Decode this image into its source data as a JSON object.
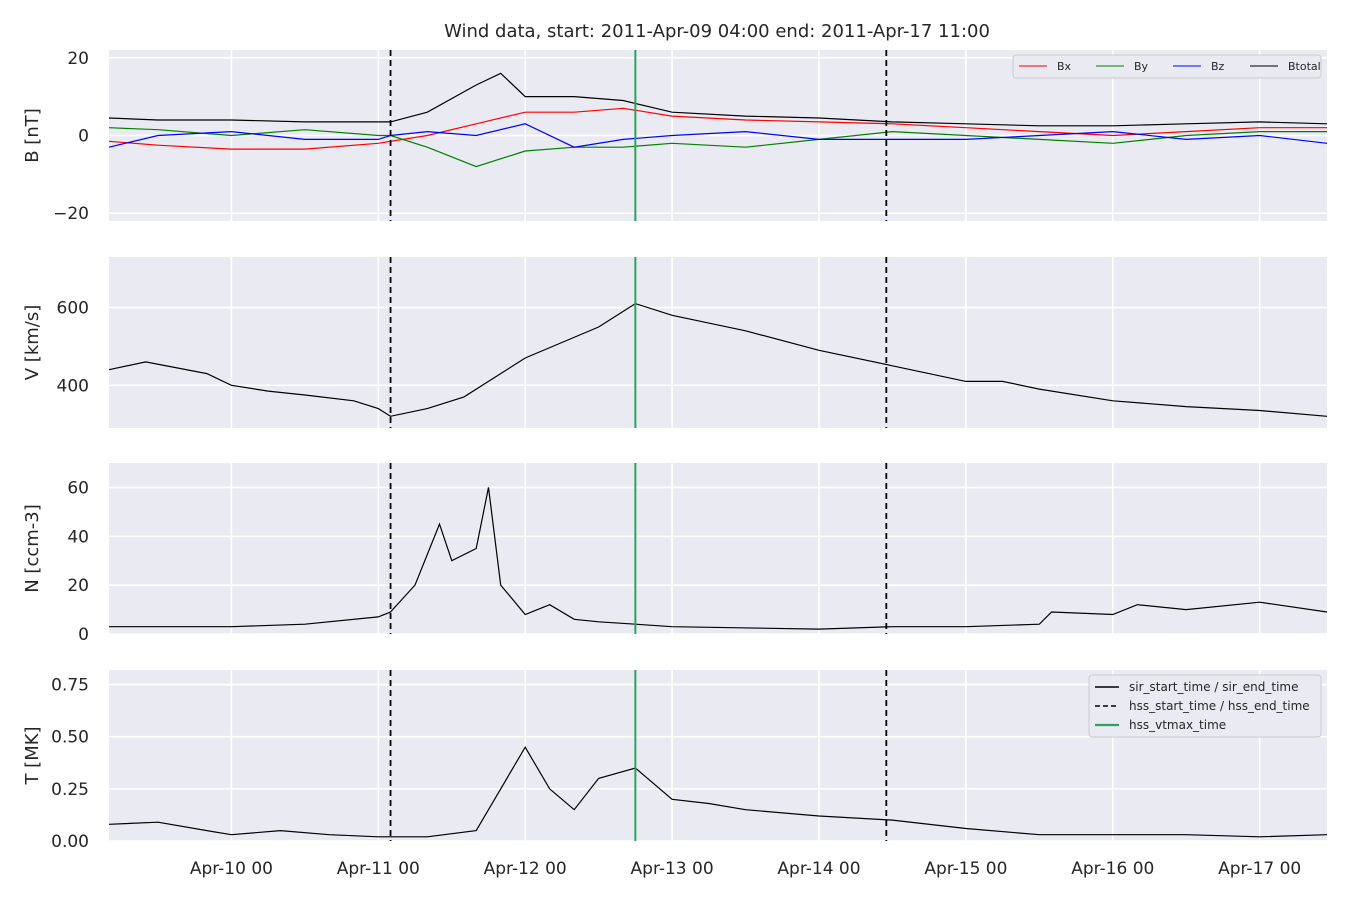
{
  "chart_data": {
    "type": "line",
    "title": "Wind data, start: 2011-Apr-09 04:00  end: 2011-Apr-17 11:00",
    "x_range": [
      "2011-04-09 04:00",
      "2011-04-17 11:00"
    ],
    "x_ticks": [
      {
        "t": "2011-04-10 00:00",
        "label": "Apr-10 00"
      },
      {
        "t": "2011-04-11 00:00",
        "label": "Apr-11 00"
      },
      {
        "t": "2011-04-12 00:00",
        "label": "Apr-12 00"
      },
      {
        "t": "2011-04-13 00:00",
        "label": "Apr-13 00"
      },
      {
        "t": "2011-04-14 00:00",
        "label": "Apr-14 00"
      },
      {
        "t": "2011-04-15 00:00",
        "label": "Apr-15 00"
      },
      {
        "t": "2011-04-16 00:00",
        "label": "Apr-16 00"
      },
      {
        "t": "2011-04-17 00:00",
        "label": "Apr-17 00"
      }
    ],
    "grid": true,
    "event_markers": [
      {
        "t": "2011-04-11 02:00",
        "style": "dashed",
        "color": "#000000",
        "series": "hss_start_time / hss_end_time"
      },
      {
        "t": "2011-04-12 18:00",
        "style": "solid",
        "color": "#2ca25f",
        "series": "hss_vtmax_time"
      },
      {
        "t": "2011-04-14 11:00",
        "style": "dashed",
        "color": "#000000",
        "series": "hss_start_time / hss_end_time"
      }
    ],
    "panels": [
      {
        "id": "B",
        "ylabel": "B [nT]",
        "ylim": [
          -22,
          22
        ],
        "yticks": [
          {
            "v": 20,
            "label": "20"
          },
          {
            "v": 0,
            "label": "0"
          },
          {
            "v": -20,
            "label": "−20"
          }
        ],
        "legend": {
          "position": "top-right",
          "layout": "row"
        },
        "series": [
          {
            "name": "Bx",
            "color": "#ff0000",
            "values": [
              [
                "2011-04-09 04:00",
                -1.5
              ],
              [
                "2011-04-09 12:00",
                -2.5
              ],
              [
                "2011-04-10 00:00",
                -3.5
              ],
              [
                "2011-04-10 12:00",
                -3.5
              ],
              [
                "2011-04-11 00:00",
                -2
              ],
              [
                "2011-04-11 02:00",
                -1.5
              ],
              [
                "2011-04-11 08:00",
                0
              ],
              [
                "2011-04-11 16:00",
                3
              ],
              [
                "2011-04-12 00:00",
                6
              ],
              [
                "2011-04-12 08:00",
                6
              ],
              [
                "2011-04-12 16:00",
                7
              ],
              [
                "2011-04-13 00:00",
                5
              ],
              [
                "2011-04-13 12:00",
                4
              ],
              [
                "2011-04-14 00:00",
                3.5
              ],
              [
                "2011-04-14 12:00",
                3
              ],
              [
                "2011-04-15 00:00",
                2
              ],
              [
                "2011-04-15 12:00",
                1
              ],
              [
                "2011-04-16 00:00",
                0
              ],
              [
                "2011-04-16 12:00",
                1
              ],
              [
                "2011-04-17 00:00",
                2
              ],
              [
                "2011-04-17 11:00",
                2
              ]
            ]
          },
          {
            "name": "By",
            "color": "#008000",
            "values": [
              [
                "2011-04-09 04:00",
                2
              ],
              [
                "2011-04-09 12:00",
                1.5
              ],
              [
                "2011-04-10 00:00",
                0
              ],
              [
                "2011-04-10 12:00",
                1.5
              ],
              [
                "2011-04-11 00:00",
                0
              ],
              [
                "2011-04-11 02:00",
                0
              ],
              [
                "2011-04-11 08:00",
                -3
              ],
              [
                "2011-04-11 16:00",
                -8
              ],
              [
                "2011-04-12 00:00",
                -4
              ],
              [
                "2011-04-12 08:00",
                -3
              ],
              [
                "2011-04-12 16:00",
                -3
              ],
              [
                "2011-04-13 00:00",
                -2
              ],
              [
                "2011-04-13 12:00",
                -3
              ],
              [
                "2011-04-14 00:00",
                -1
              ],
              [
                "2011-04-14 12:00",
                1
              ],
              [
                "2011-04-15 00:00",
                0
              ],
              [
                "2011-04-15 12:00",
                -1
              ],
              [
                "2011-04-16 00:00",
                -2
              ],
              [
                "2011-04-16 12:00",
                0
              ],
              [
                "2011-04-17 00:00",
                1
              ],
              [
                "2011-04-17 11:00",
                1
              ]
            ]
          },
          {
            "name": "Bz",
            "color": "#0000ff",
            "values": [
              [
                "2011-04-09 04:00",
                -3
              ],
              [
                "2011-04-09 12:00",
                0
              ],
              [
                "2011-04-10 00:00",
                1
              ],
              [
                "2011-04-10 12:00",
                -1
              ],
              [
                "2011-04-11 00:00",
                -1
              ],
              [
                "2011-04-11 02:00",
                0
              ],
              [
                "2011-04-11 08:00",
                1
              ],
              [
                "2011-04-11 16:00",
                0
              ],
              [
                "2011-04-12 00:00",
                3
              ],
              [
                "2011-04-12 08:00",
                -3
              ],
              [
                "2011-04-12 16:00",
                -1
              ],
              [
                "2011-04-13 00:00",
                0
              ],
              [
                "2011-04-13 12:00",
                1
              ],
              [
                "2011-04-14 00:00",
                -1
              ],
              [
                "2011-04-14 12:00",
                -1
              ],
              [
                "2011-04-15 00:00",
                -1
              ],
              [
                "2011-04-15 12:00",
                0
              ],
              [
                "2011-04-16 00:00",
                1
              ],
              [
                "2011-04-16 12:00",
                -1
              ],
              [
                "2011-04-17 00:00",
                0
              ],
              [
                "2011-04-17 11:00",
                -2
              ]
            ]
          },
          {
            "name": "Btotal",
            "color": "#000000",
            "values": [
              [
                "2011-04-09 04:00",
                4.5
              ],
              [
                "2011-04-09 12:00",
                4
              ],
              [
                "2011-04-10 00:00",
                4
              ],
              [
                "2011-04-10 12:00",
                3.5
              ],
              [
                "2011-04-11 00:00",
                3.5
              ],
              [
                "2011-04-11 02:00",
                3.5
              ],
              [
                "2011-04-11 08:00",
                6
              ],
              [
                "2011-04-11 16:00",
                13
              ],
              [
                "2011-04-11 20:00",
                16
              ],
              [
                "2011-04-12 00:00",
                10
              ],
              [
                "2011-04-12 08:00",
                10
              ],
              [
                "2011-04-12 16:00",
                9
              ],
              [
                "2011-04-13 00:00",
                6
              ],
              [
                "2011-04-13 12:00",
                5
              ],
              [
                "2011-04-14 00:00",
                4.5
              ],
              [
                "2011-04-14 12:00",
                3.5
              ],
              [
                "2011-04-15 00:00",
                3
              ],
              [
                "2011-04-15 12:00",
                2.5
              ],
              [
                "2011-04-16 00:00",
                2.5
              ],
              [
                "2011-04-16 12:00",
                3
              ],
              [
                "2011-04-17 00:00",
                3.5
              ],
              [
                "2011-04-17 11:00",
                3
              ]
            ]
          }
        ]
      },
      {
        "id": "V",
        "ylabel": "V [km/s]",
        "ylim": [
          290,
          730
        ],
        "yticks": [
          {
            "v": 600,
            "label": "600"
          },
          {
            "v": 400,
            "label": "400"
          }
        ],
        "series": [
          {
            "name": "",
            "color": "#000000",
            "values": [
              [
                "2011-04-09 04:00",
                440
              ],
              [
                "2011-04-09 10:00",
                460
              ],
              [
                "2011-04-09 20:00",
                430
              ],
              [
                "2011-04-10 00:00",
                400
              ],
              [
                "2011-04-10 06:00",
                385
              ],
              [
                "2011-04-10 12:00",
                375
              ],
              [
                "2011-04-10 20:00",
                360
              ],
              [
                "2011-04-11 00:00",
                340
              ],
              [
                "2011-04-11 02:00",
                320
              ],
              [
                "2011-04-11 08:00",
                340
              ],
              [
                "2011-04-11 14:00",
                370
              ],
              [
                "2011-04-11 20:00",
                430
              ],
              [
                "2011-04-12 00:00",
                470
              ],
              [
                "2011-04-12 06:00",
                510
              ],
              [
                "2011-04-12 12:00",
                550
              ],
              [
                "2011-04-12 18:00",
                610
              ],
              [
                "2011-04-13 00:00",
                580
              ],
              [
                "2011-04-13 06:00",
                560
              ],
              [
                "2011-04-13 12:00",
                540
              ],
              [
                "2011-04-14 00:00",
                490
              ],
              [
                "2011-04-14 12:00",
                450
              ],
              [
                "2011-04-15 00:00",
                410
              ],
              [
                "2011-04-15 06:00",
                410
              ],
              [
                "2011-04-15 12:00",
                390
              ],
              [
                "2011-04-16 00:00",
                360
              ],
              [
                "2011-04-16 12:00",
                345
              ],
              [
                "2011-04-17 00:00",
                335
              ],
              [
                "2011-04-17 11:00",
                320
              ]
            ]
          }
        ]
      },
      {
        "id": "N",
        "ylabel": "N [ccm-3]",
        "ylim": [
          0,
          70
        ],
        "yticks": [
          {
            "v": 60,
            "label": "60"
          },
          {
            "v": 40,
            "label": "40"
          },
          {
            "v": 20,
            "label": "20"
          },
          {
            "v": 0,
            "label": "0"
          }
        ],
        "series": [
          {
            "name": "",
            "color": "#000000",
            "values": [
              [
                "2011-04-09 04:00",
                3
              ],
              [
                "2011-04-09 12:00",
                3
              ],
              [
                "2011-04-10 00:00",
                3
              ],
              [
                "2011-04-10 12:00",
                4
              ],
              [
                "2011-04-11 00:00",
                7
              ],
              [
                "2011-04-11 02:00",
                9
              ],
              [
                "2011-04-11 06:00",
                20
              ],
              [
                "2011-04-11 10:00",
                45
              ],
              [
                "2011-04-11 12:00",
                30
              ],
              [
                "2011-04-11 16:00",
                35
              ],
              [
                "2011-04-11 18:00",
                60
              ],
              [
                "2011-04-11 20:00",
                20
              ],
              [
                "2011-04-12 00:00",
                8
              ],
              [
                "2011-04-12 04:00",
                12
              ],
              [
                "2011-04-12 08:00",
                6
              ],
              [
                "2011-04-12 12:00",
                5
              ],
              [
                "2011-04-12 18:00",
                4
              ],
              [
                "2011-04-13 00:00",
                3
              ],
              [
                "2011-04-14 00:00",
                2
              ],
              [
                "2011-04-14 12:00",
                3
              ],
              [
                "2011-04-15 00:00",
                3
              ],
              [
                "2011-04-15 12:00",
                4
              ],
              [
                "2011-04-15 14:00",
                9
              ],
              [
                "2011-04-16 00:00",
                8
              ],
              [
                "2011-04-16 04:00",
                12
              ],
              [
                "2011-04-16 12:00",
                10
              ],
              [
                "2011-04-17 00:00",
                13
              ],
              [
                "2011-04-17 11:00",
                9
              ]
            ]
          }
        ]
      },
      {
        "id": "T",
        "ylabel": "T [MK]",
        "ylim": [
          0,
          0.82
        ],
        "yticks": [
          {
            "v": 0.75,
            "label": "0.75"
          },
          {
            "v": 0.5,
            "label": "0.50"
          },
          {
            "v": 0.25,
            "label": "0.25"
          },
          {
            "v": 0,
            "label": "0.00"
          }
        ],
        "legend": {
          "position": "top-right",
          "layout": "column"
        },
        "legend_entries": [
          {
            "label": "sir_start_time / sir_end_time",
            "style": "solid",
            "color": "#000000"
          },
          {
            "label": "hss_start_time / hss_end_time",
            "style": "dashed",
            "color": "#000000"
          },
          {
            "label": "hss_vtmax_time",
            "style": "solid",
            "color": "#2ca25f"
          }
        ],
        "series": [
          {
            "name": "",
            "color": "#000000",
            "values": [
              [
                "2011-04-09 04:00",
                0.08
              ],
              [
                "2011-04-09 12:00",
                0.09
              ],
              [
                "2011-04-09 20:00",
                0.05
              ],
              [
                "2011-04-10 00:00",
                0.03
              ],
              [
                "2011-04-10 08:00",
                0.05
              ],
              [
                "2011-04-10 16:00",
                0.03
              ],
              [
                "2011-04-11 00:00",
                0.02
              ],
              [
                "2011-04-11 08:00",
                0.02
              ],
              [
                "2011-04-11 16:00",
                0.05
              ],
              [
                "2011-04-11 20:00",
                0.25
              ],
              [
                "2011-04-12 00:00",
                0.45
              ],
              [
                "2011-04-12 04:00",
                0.25
              ],
              [
                "2011-04-12 08:00",
                0.15
              ],
              [
                "2011-04-12 12:00",
                0.3
              ],
              [
                "2011-04-12 18:00",
                0.35
              ],
              [
                "2011-04-13 00:00",
                0.2
              ],
              [
                "2011-04-13 06:00",
                0.18
              ],
              [
                "2011-04-13 12:00",
                0.15
              ],
              [
                "2011-04-14 00:00",
                0.12
              ],
              [
                "2011-04-14 12:00",
                0.1
              ],
              [
                "2011-04-15 00:00",
                0.06
              ],
              [
                "2011-04-15 12:00",
                0.03
              ],
              [
                "2011-04-16 00:00",
                0.03
              ],
              [
                "2011-04-16 12:00",
                0.03
              ],
              [
                "2011-04-17 00:00",
                0.02
              ],
              [
                "2011-04-17 11:00",
                0.03
              ]
            ]
          }
        ]
      }
    ]
  }
}
